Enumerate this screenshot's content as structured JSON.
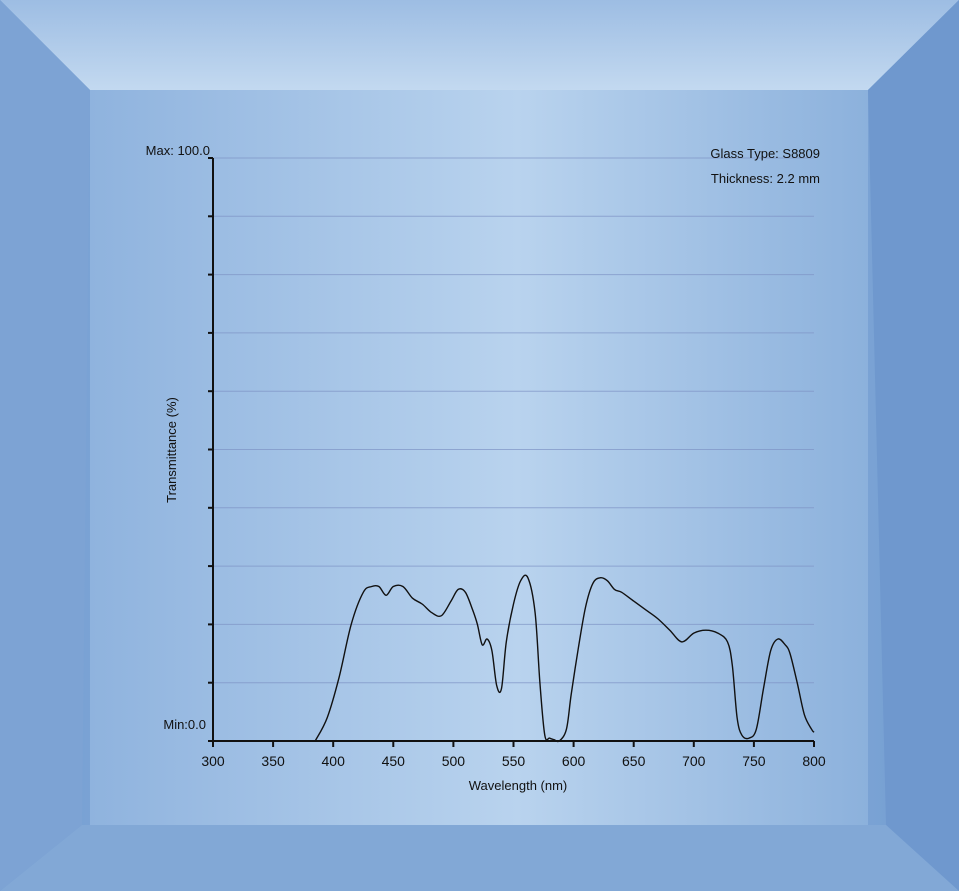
{
  "colors": {
    "background": "#8fb3dc",
    "panel": "#a9c6e8",
    "gridline": "#7e93c4",
    "curve": "#111111"
  },
  "chart_data": {
    "type": "line",
    "xlabel": "Wavelength (nm)",
    "ylabel": "Transmittance (%)",
    "max_label": "Max: 100.0",
    "min_label": "Min:0.0",
    "annotations": [
      "Glass Type: S8809",
      "Thickness: 2.2 mm"
    ],
    "xlim": [
      300,
      800
    ],
    "ylim": [
      0,
      100
    ],
    "x_ticks": [
      300,
      350,
      400,
      450,
      500,
      550,
      600,
      650,
      700,
      750,
      800
    ],
    "y_ticks": [
      0,
      10,
      20,
      30,
      40,
      50,
      60,
      70,
      80,
      90,
      100
    ],
    "grid": true,
    "series": [
      {
        "x": [
          385,
          395,
          405,
          415,
          425,
          432,
          438,
          444,
          450,
          458,
          466,
          474,
          482,
          490,
          498,
          504,
          510,
          516,
          520,
          524,
          528,
          532,
          536,
          540,
          544,
          550,
          556,
          562,
          568,
          572,
          576,
          580,
          584,
          588,
          594,
          598,
          604,
          610,
          616,
          622,
          628,
          634,
          640,
          650,
          660,
          670,
          680,
          690,
          700,
          710,
          720,
          728,
          732,
          736,
          740,
          746,
          752,
          758,
          764,
          770,
          776,
          780,
          786,
          792,
          798,
          800
        ],
        "y": [
          0.0,
          4.0,
          11.0,
          20.0,
          25.5,
          26.5,
          26.5,
          25.0,
          26.5,
          26.5,
          24.5,
          23.5,
          22.0,
          21.5,
          24.0,
          26.0,
          25.5,
          22.5,
          20.0,
          16.5,
          17.5,
          15.5,
          9.5,
          9.0,
          17.0,
          23.5,
          27.5,
          28.0,
          22.0,
          10.0,
          1.0,
          0.5,
          0.2,
          0.0,
          2.0,
          8.0,
          16.0,
          23.0,
          27.0,
          28.0,
          27.5,
          26.0,
          25.5,
          24.0,
          22.5,
          21.0,
          19.0,
          17.0,
          18.5,
          19.0,
          18.5,
          17.0,
          13.0,
          4.0,
          1.0,
          0.5,
          2.0,
          9.0,
          15.5,
          17.5,
          16.5,
          15.0,
          10.0,
          4.5,
          2.0,
          1.5
        ]
      }
    ]
  }
}
